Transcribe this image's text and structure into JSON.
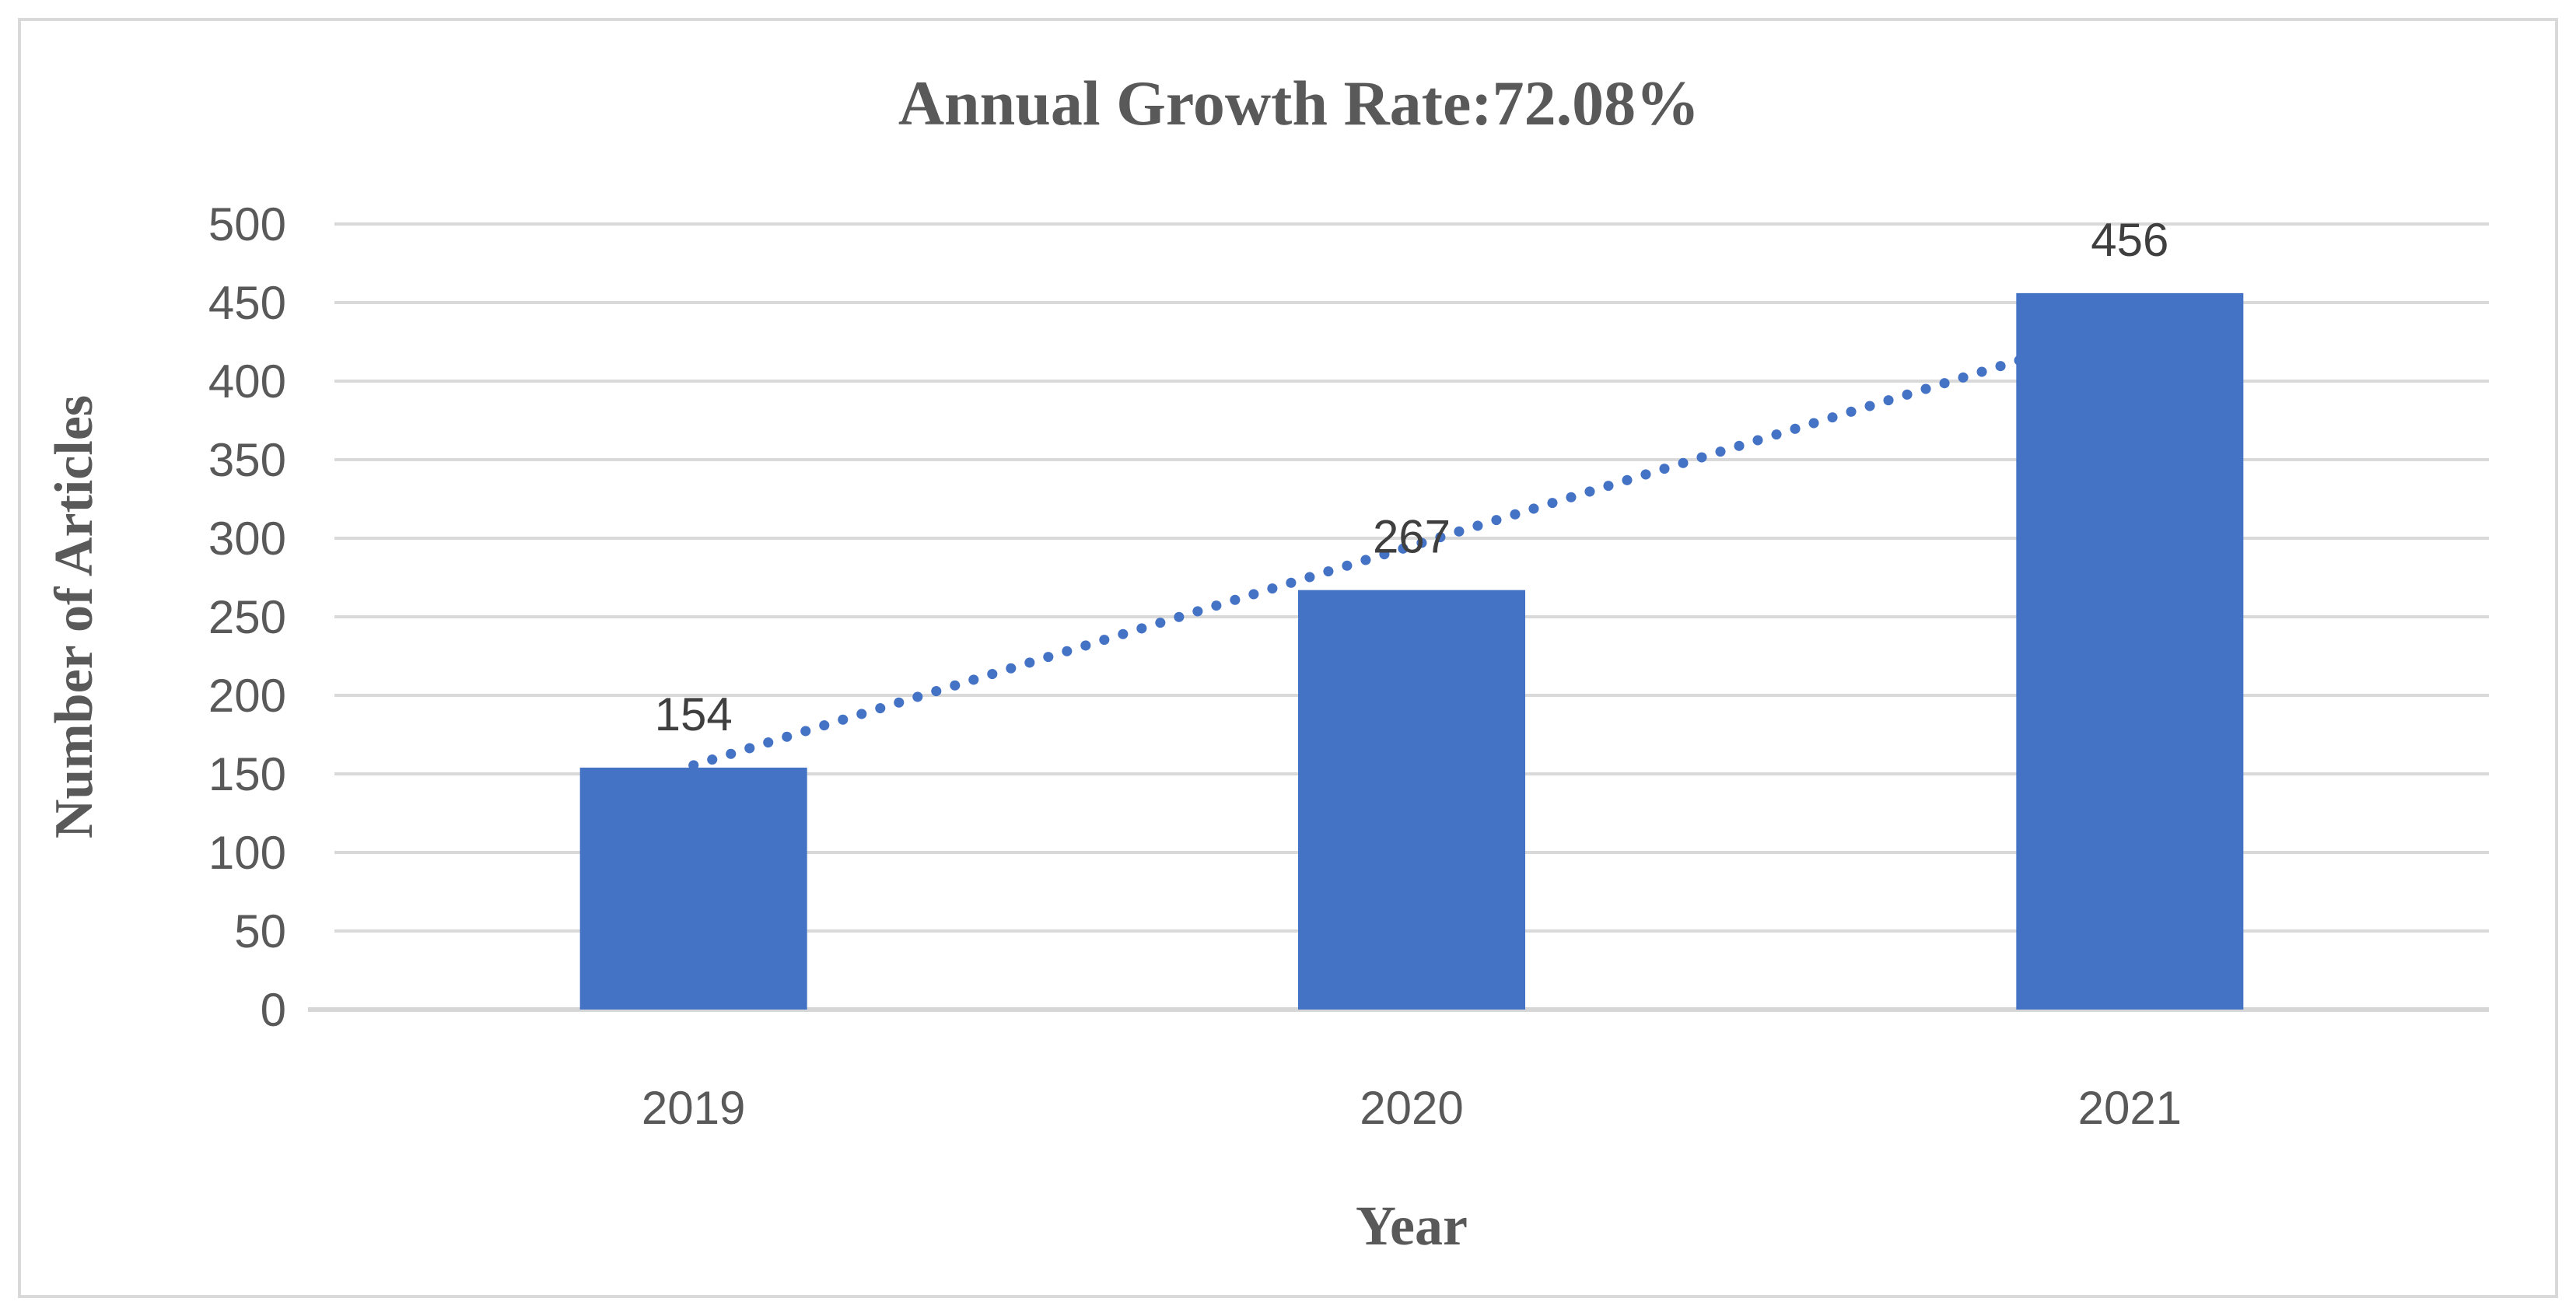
{
  "page": {
    "background_color": "#FFFFFF",
    "frame_border_color": "#D9D9D9"
  },
  "chart_data": {
    "type": "bar",
    "title": "Annual Growth Rate:72.08%",
    "xlabel": "Year",
    "ylabel": "Number of Articles",
    "categories": [
      "2019",
      "2020",
      "2021"
    ],
    "values": [
      154,
      267,
      456
    ],
    "data_labels": [
      "154",
      "267",
      "456"
    ],
    "ylim": [
      0,
      500
    ],
    "ytick_step": 50,
    "yticks": [
      0,
      50,
      100,
      150,
      200,
      250,
      300,
      350,
      400,
      450,
      500
    ],
    "grid": "horizontal",
    "legend": "none",
    "bar_color": "#4472C4",
    "trendline": {
      "style": "dotted",
      "color": "#4472C4",
      "from_category": "2019",
      "to_category": "2021"
    },
    "colors": {
      "gridline": "#D9D9D9",
      "baseline": "#D6D6D6",
      "title_text": "#595959",
      "tick_text": "#595959",
      "data_label_text": "#3F3F3F"
    }
  }
}
